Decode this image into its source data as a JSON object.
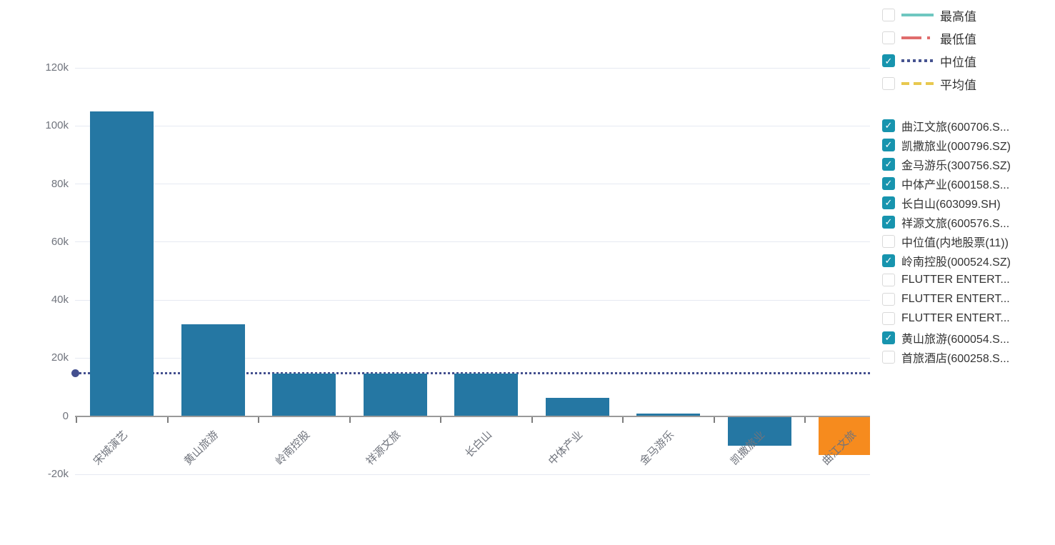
{
  "icons": {
    "check_glyph": "✓"
  },
  "colors": {
    "bar": "#2577a3",
    "bar_highlight": "#f68b1e",
    "median_line": "#44508f",
    "axis_line": "#9a9a9a",
    "tick": "#7d7d7d",
    "grid_line": "#e6e9f2",
    "axis_label": "#70747d",
    "legend_text": "#333333",
    "checkbox_checked_bg": "#1794ae",
    "checkbox_border": "#d9d9d9"
  },
  "chart_data": {
    "type": "bar",
    "title": "",
    "xlabel": "",
    "ylabel": "",
    "categories": [
      "宋城演艺",
      "黄山旅游",
      "岭南控股",
      "祥源文旅",
      "长白山",
      "中体产业",
      "金马游乐",
      "凯撒旅业",
      "曲江文旅"
    ],
    "values": [
      105000,
      31600,
      14700,
      14600,
      14600,
      6400,
      900,
      -10200,
      -13300
    ],
    "bar_colors": [
      "#2577a3",
      "#2577a3",
      "#2577a3",
      "#2577a3",
      "#2577a3",
      "#2577a3",
      "#2577a3",
      "#2577a3",
      "#f68b1e"
    ],
    "ylim": [
      -20000,
      120000
    ],
    "y_ticks": [
      {
        "value": 120000,
        "label": "120k"
      },
      {
        "value": 100000,
        "label": "100k"
      },
      {
        "value": 80000,
        "label": "80k"
      },
      {
        "value": 60000,
        "label": "60k"
      },
      {
        "value": 40000,
        "label": "40k"
      },
      {
        "value": 20000,
        "label": "20k"
      },
      {
        "value": 0,
        "label": "0"
      },
      {
        "value": -20000,
        "label": "-20k"
      }
    ],
    "grid": true,
    "legend_position": "right",
    "reference_lines": [
      {
        "name": "中位值",
        "value": 14800,
        "style": "dotted",
        "color": "#44508f",
        "visible": true
      }
    ]
  },
  "stat_legend": {
    "items": [
      {
        "label": "最高值",
        "checked": false,
        "color": "#6fc7c0",
        "line_style": "solid"
      },
      {
        "label": "最低值",
        "checked": false,
        "color": "#e06c6c",
        "line_style": "dashdot"
      },
      {
        "label": "中位值",
        "checked": true,
        "color": "#475490",
        "line_style": "dotted"
      },
      {
        "label": "平均值",
        "checked": false,
        "color": "#e8c84f",
        "line_style": "dashed"
      }
    ]
  },
  "series_legend": {
    "items": [
      {
        "label": "曲江文旅(600706.S...",
        "checked": true
      },
      {
        "label": "凯撒旅业(000796.SZ)",
        "checked": true
      },
      {
        "label": "金马游乐(300756.SZ)",
        "checked": true
      },
      {
        "label": "中体产业(600158.S...",
        "checked": true
      },
      {
        "label": "长白山(603099.SH)",
        "checked": true
      },
      {
        "label": "祥源文旅(600576.S...",
        "checked": true
      },
      {
        "label": "中位值(内地股票(11))",
        "checked": false
      },
      {
        "label": "岭南控股(000524.SZ)",
        "checked": true
      },
      {
        "label": "FLUTTER ENTERT...",
        "checked": false
      },
      {
        "label": "FLUTTER ENTERT...",
        "checked": false
      },
      {
        "label": "FLUTTER ENTERT...",
        "checked": false
      },
      {
        "label": "黄山旅游(600054.S...",
        "checked": true
      },
      {
        "label": "首旅酒店(600258.S...",
        "checked": false
      }
    ]
  }
}
